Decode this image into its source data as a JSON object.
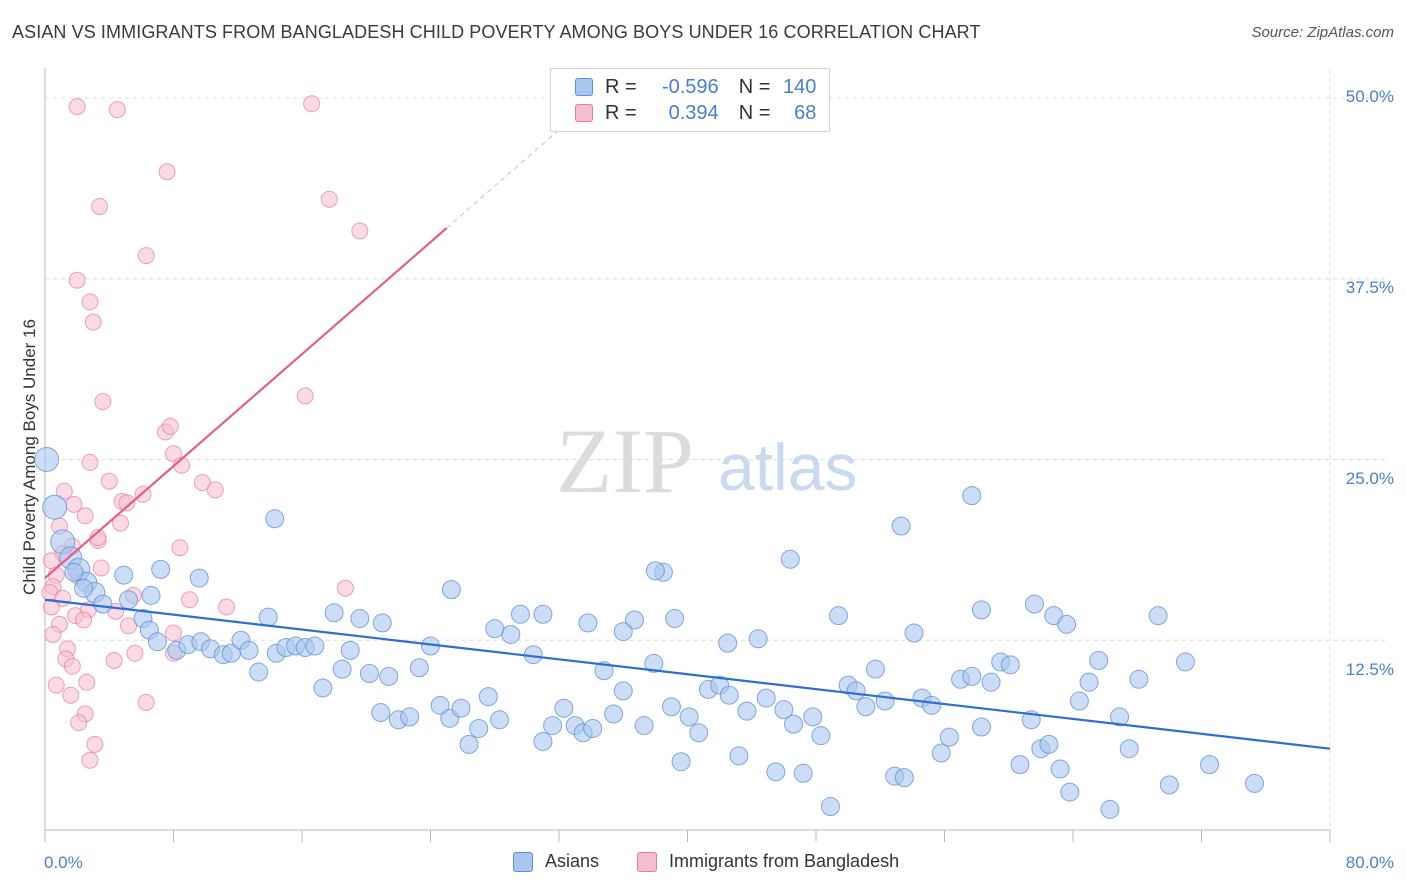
{
  "title": "ASIAN VS IMMIGRANTS FROM BANGLADESH CHILD POVERTY AMONG BOYS UNDER 16 CORRELATION CHART",
  "source": "Source: ZipAtlas.com",
  "watermark": {
    "zip": "ZIP",
    "atlas": "atlas"
  },
  "colors": {
    "asian": "#5b8fd6",
    "asian_fill": "#aac6ee",
    "asian_line": "#2d6fd0",
    "bangladesh": "#e87aa0",
    "bangladesh_fill": "#f5bdd0",
    "bangladesh_line": "#e0608a",
    "axis_text": "#4a7fc8"
  },
  "legend": {
    "rows": [
      {
        "r_label": "R =",
        "r_value": "-0.596",
        "n_label": "N =",
        "n_value": "140"
      },
      {
        "r_label": "R =",
        "r_value": "0.394",
        "n_label": "N =",
        "n_value": "68"
      }
    ]
  },
  "bottom_legend": {
    "asians": "Asians",
    "bangladesh": "Immigrants from Bangladesh"
  },
  "chart_data": {
    "type": "scatter",
    "title": "ASIAN VS IMMIGRANTS FROM BANGLADESH CHILD POVERTY AMONG BOYS UNDER 16 CORRELATION CHART",
    "xlabel": "",
    "ylabel": "Child Poverty Among Boys Under 16",
    "xlim": [
      0,
      80
    ],
    "ylim": [
      0,
      50
    ],
    "x_tick_labels": [
      "0.0%",
      "80.0%"
    ],
    "y_tick_labels": [
      "12.5%",
      "25.0%",
      "37.5%",
      "50.0%"
    ],
    "y_ticks": [
      12.5,
      25.0,
      37.5,
      50.0
    ],
    "grid": true,
    "series": [
      {
        "name": "Asians",
        "R": -0.596,
        "N": 140,
        "trend": {
          "x0": 0.0,
          "y0": 15.3,
          "x1": 80.0,
          "y1": 5.0
        },
        "points": [
          [
            0.1,
            25.0
          ],
          [
            0.6,
            21.7
          ],
          [
            1.1,
            19.3
          ],
          [
            1.6,
            18.2
          ],
          [
            2.1,
            17.4
          ],
          [
            2.6,
            16.5
          ],
          [
            3.1,
            15.8
          ],
          [
            3.6,
            15.0
          ],
          [
            1.8,
            17.2
          ],
          [
            2.4,
            16.1
          ],
          [
            4.9,
            17.0
          ],
          [
            5.2,
            15.3
          ],
          [
            6.1,
            14.0
          ],
          [
            6.5,
            13.2
          ],
          [
            7.0,
            12.4
          ],
          [
            8.2,
            11.8
          ],
          [
            8.9,
            12.2
          ],
          [
            9.7,
            12.4
          ],
          [
            10.3,
            11.9
          ],
          [
            11.1,
            11.5
          ],
          [
            11.6,
            11.6
          ],
          [
            12.2,
            12.5
          ],
          [
            12.7,
            11.8
          ],
          [
            13.3,
            10.3
          ],
          [
            13.9,
            14.1
          ],
          [
            14.4,
            11.6
          ],
          [
            15.0,
            12.0
          ],
          [
            15.6,
            12.1
          ],
          [
            16.2,
            12.0
          ],
          [
            16.8,
            12.1
          ],
          [
            17.3,
            9.2
          ],
          [
            18.0,
            14.4
          ],
          [
            18.5,
            10.5
          ],
          [
            19.0,
            11.8
          ],
          [
            19.6,
            14.0
          ],
          [
            20.2,
            10.2
          ],
          [
            20.9,
            7.5
          ],
          [
            21.4,
            10.0
          ],
          [
            22.0,
            7.0
          ],
          [
            22.7,
            7.2
          ],
          [
            23.3,
            10.6
          ],
          [
            24.0,
            12.1
          ],
          [
            24.6,
            8.0
          ],
          [
            25.2,
            7.1
          ],
          [
            25.9,
            7.8
          ],
          [
            26.4,
            5.3
          ],
          [
            27.0,
            6.4
          ],
          [
            27.6,
            8.6
          ],
          [
            28.3,
            7.0
          ],
          [
            29.0,
            12.9
          ],
          [
            29.6,
            14.3
          ],
          [
            30.4,
            11.5
          ],
          [
            31.0,
            5.5
          ],
          [
            31.6,
            6.6
          ],
          [
            32.3,
            7.8
          ],
          [
            33.0,
            6.6
          ],
          [
            33.5,
            6.1
          ],
          [
            34.1,
            6.4
          ],
          [
            34.8,
            10.4
          ],
          [
            35.4,
            7.4
          ],
          [
            36.0,
            9.0
          ],
          [
            36.7,
            13.9
          ],
          [
            37.3,
            6.6
          ],
          [
            37.9,
            10.9
          ],
          [
            38.5,
            17.2
          ],
          [
            39.0,
            7.9
          ],
          [
            39.6,
            4.1
          ],
          [
            40.1,
            7.2
          ],
          [
            40.7,
            6.1
          ],
          [
            41.3,
            9.1
          ],
          [
            42.0,
            9.4
          ],
          [
            42.6,
            8.7
          ],
          [
            43.2,
            4.5
          ],
          [
            43.7,
            7.6
          ],
          [
            44.4,
            12.6
          ],
          [
            44.9,
            8.5
          ],
          [
            45.5,
            3.4
          ],
          [
            46.0,
            7.7
          ],
          [
            46.6,
            6.7
          ],
          [
            47.2,
            3.3
          ],
          [
            47.8,
            7.2
          ],
          [
            48.3,
            5.9
          ],
          [
            48.9,
            1.0
          ],
          [
            49.4,
            14.2
          ],
          [
            50.0,
            9.4
          ],
          [
            50.5,
            9.0
          ],
          [
            51.1,
            7.9
          ],
          [
            51.7,
            10.5
          ],
          [
            52.3,
            8.3
          ],
          [
            52.9,
            3.1
          ],
          [
            53.5,
            3.0
          ],
          [
            54.1,
            13.0
          ],
          [
            54.6,
            8.5
          ],
          [
            55.2,
            8.0
          ],
          [
            55.8,
            4.7
          ],
          [
            56.3,
            5.8
          ],
          [
            57.0,
            9.8
          ],
          [
            57.7,
            10.0
          ],
          [
            58.3,
            6.5
          ],
          [
            58.9,
            9.6
          ],
          [
            59.5,
            11.0
          ],
          [
            60.1,
            10.8
          ],
          [
            60.7,
            3.9
          ],
          [
            61.4,
            7.0
          ],
          [
            62.0,
            5.0
          ],
          [
            62.5,
            5.3
          ],
          [
            63.2,
            3.6
          ],
          [
            63.8,
            2.0
          ],
          [
            64.4,
            8.3
          ],
          [
            65.0,
            9.6
          ],
          [
            65.6,
            11.1
          ],
          [
            66.3,
            0.8
          ],
          [
            66.9,
            7.2
          ],
          [
            67.5,
            5.0
          ],
          [
            68.1,
            9.8
          ],
          [
            70.0,
            2.5
          ],
          [
            72.5,
            3.9
          ],
          [
            75.3,
            2.6
          ],
          [
            71.0,
            11.0
          ],
          [
            69.3,
            14.2
          ],
          [
            57.7,
            22.5
          ],
          [
            53.3,
            20.4
          ],
          [
            46.4,
            18.1
          ],
          [
            38.0,
            17.3
          ],
          [
            14.3,
            20.9
          ],
          [
            7.2,
            17.4
          ],
          [
            9.6,
            16.8
          ],
          [
            6.6,
            15.6
          ],
          [
            21.0,
            13.7
          ],
          [
            25.3,
            16.0
          ],
          [
            28.0,
            13.3
          ],
          [
            31.0,
            14.3
          ],
          [
            33.8,
            13.7
          ],
          [
            36.0,
            13.1
          ],
          [
            39.2,
            14.0
          ],
          [
            42.5,
            12.3
          ],
          [
            58.3,
            14.6
          ],
          [
            61.6,
            15.0
          ],
          [
            62.8,
            14.2
          ],
          [
            63.6,
            13.6
          ]
        ]
      },
      {
        "name": "Immigrants from Bangladesh",
        "R": 0.394,
        "N": 68,
        "trend": {
          "x0": 0.0,
          "y0": 16.8,
          "x1": 25.0,
          "y1": 41.0,
          "dash_x1": 32.0,
          "dash_y1": 47.8
        },
        "points": [
          [
            2.0,
            49.4
          ],
          [
            4.5,
            49.2
          ],
          [
            16.6,
            49.6
          ],
          [
            3.4,
            42.5
          ],
          [
            7.6,
            44.9
          ],
          [
            17.7,
            43.0
          ],
          [
            19.6,
            40.8
          ],
          [
            6.3,
            39.1
          ],
          [
            2.0,
            37.4
          ],
          [
            2.8,
            35.9
          ],
          [
            3.0,
            34.5
          ],
          [
            16.2,
            29.4
          ],
          [
            3.6,
            29.0
          ],
          [
            7.5,
            26.9
          ],
          [
            7.8,
            27.3
          ],
          [
            8.0,
            25.4
          ],
          [
            9.8,
            23.4
          ],
          [
            8.5,
            24.6
          ],
          [
            2.8,
            24.8
          ],
          [
            4.0,
            23.5
          ],
          [
            1.2,
            22.8
          ],
          [
            4.8,
            22.1
          ],
          [
            5.1,
            22.0
          ],
          [
            1.8,
            21.9
          ],
          [
            2.5,
            21.1
          ],
          [
            0.9,
            20.4
          ],
          [
            3.3,
            19.4
          ],
          [
            1.7,
            19.0
          ],
          [
            8.4,
            18.9
          ],
          [
            1.1,
            18.5
          ],
          [
            0.4,
            18.0
          ],
          [
            3.5,
            17.5
          ],
          [
            0.7,
            17.0
          ],
          [
            2.1,
            16.9
          ],
          [
            0.5,
            16.2
          ],
          [
            0.3,
            15.8
          ],
          [
            1.1,
            15.4
          ],
          [
            0.4,
            14.8
          ],
          [
            2.7,
            14.6
          ],
          [
            1.9,
            14.2
          ],
          [
            5.5,
            15.6
          ],
          [
            11.3,
            14.8
          ],
          [
            2.4,
            13.9
          ],
          [
            4.4,
            14.5
          ],
          [
            0.9,
            13.6
          ],
          [
            5.2,
            13.5
          ],
          [
            0.5,
            12.9
          ],
          [
            8.0,
            13.0
          ],
          [
            1.4,
            11.9
          ],
          [
            5.6,
            11.6
          ],
          [
            1.3,
            11.2
          ],
          [
            1.7,
            10.7
          ],
          [
            4.3,
            11.1
          ],
          [
            8.0,
            11.6
          ],
          [
            2.6,
            9.6
          ],
          [
            0.7,
            9.4
          ],
          [
            1.6,
            8.7
          ],
          [
            6.3,
            8.2
          ],
          [
            2.5,
            7.4
          ],
          [
            2.1,
            6.8
          ],
          [
            3.1,
            5.3
          ],
          [
            2.8,
            4.2
          ],
          [
            18.7,
            16.1
          ],
          [
            9.0,
            15.3
          ],
          [
            10.6,
            22.9
          ],
          [
            6.1,
            22.6
          ],
          [
            4.7,
            20.6
          ],
          [
            3.3,
            19.6
          ]
        ]
      }
    ]
  }
}
